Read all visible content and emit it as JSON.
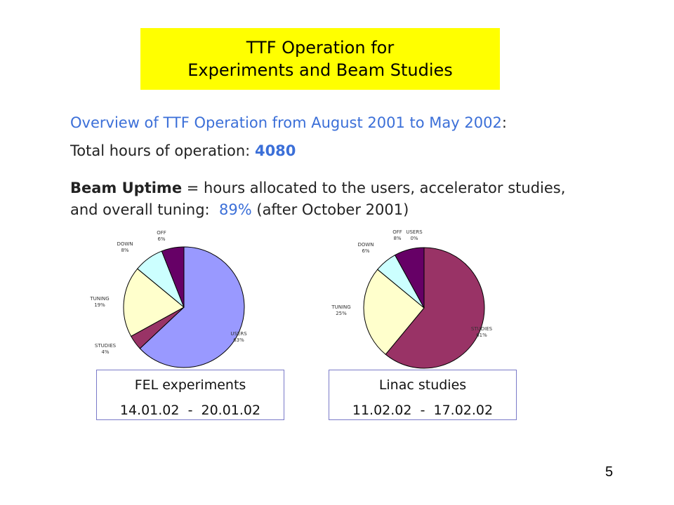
{
  "title": {
    "line1": "TTF Operation for",
    "line2": "Experiments and Beam Studies"
  },
  "overview": {
    "heading": "Overview of TTF Operation from August 2001 to May 2002",
    "heading_colon": ":",
    "total_label": "Total hours of operation:",
    "total_value": "4080",
    "uptime_term": "Beam Uptime",
    "uptime_definition": " = hours allocated to the users, accelerator studies,",
    "uptime_line2_prefix": "and overall tuning:",
    "uptime_value": "89%",
    "uptime_note": "(after October 2001)"
  },
  "chart_data": [
    {
      "type": "pie",
      "caption": "FEL experiments",
      "date_range": "14.01.02  -  20.01.02",
      "slices": [
        {
          "name": "USERS",
          "value": 63,
          "label": "63%",
          "color": "#9999ff"
        },
        {
          "name": "STUDIES",
          "value": 4,
          "label": "4%",
          "color": "#993366"
        },
        {
          "name": "TUNING",
          "value": 19,
          "label": "19%",
          "color": "#ffffcc"
        },
        {
          "name": "DOWN",
          "value": 8,
          "label": "8%",
          "color": "#ccffff"
        },
        {
          "name": "OFF",
          "value": 6,
          "label": "6%",
          "color": "#660066"
        }
      ]
    },
    {
      "type": "pie",
      "caption": "Linac studies",
      "date_range": "11.02.02  -  17.02.02",
      "slices": [
        {
          "name": "USERS",
          "value": 0,
          "label": "0%",
          "color": "#9999ff"
        },
        {
          "name": "STUDIES",
          "value": 61,
          "label": "61%",
          "color": "#993366"
        },
        {
          "name": "TUNING",
          "value": 25,
          "label": "25%",
          "color": "#ffffcc"
        },
        {
          "name": "DOWN",
          "value": 6,
          "label": "6%",
          "color": "#ccffff"
        },
        {
          "name": "OFF",
          "value": 8,
          "label": "8%",
          "color": "#660066"
        }
      ]
    }
  ],
  "page_number": "5"
}
